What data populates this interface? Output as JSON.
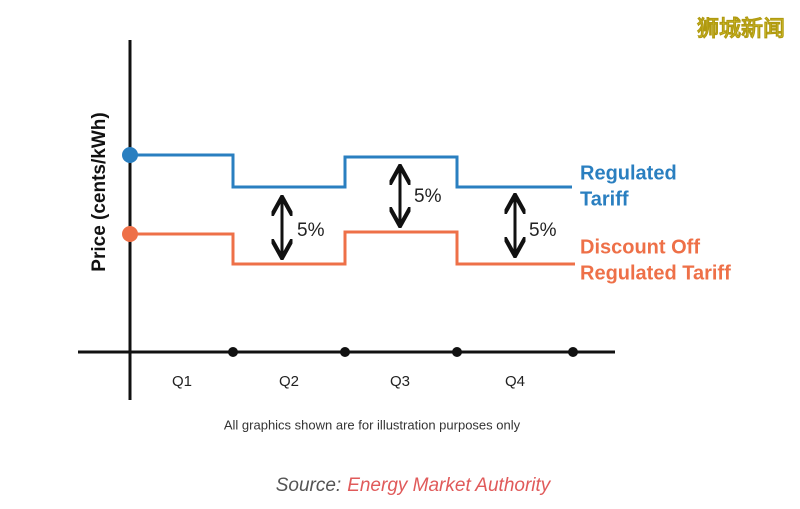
{
  "watermark": "狮城新闻",
  "y_axis_label": "Price (cents/kWh)",
  "categories": [
    "Q1",
    "Q2",
    "Q3",
    "Q4"
  ],
  "differences": [
    "5%",
    "5%",
    "5%"
  ],
  "series": [
    {
      "label_lines": [
        "Regulated",
        "Tariff"
      ]
    },
    {
      "label_lines": [
        "Discount Off",
        "Regulated Tariff"
      ]
    }
  ],
  "note": "All graphics shown are for illustration purposes only",
  "source": {
    "prefix": "Source:",
    "name": "Energy Market Authority"
  }
}
